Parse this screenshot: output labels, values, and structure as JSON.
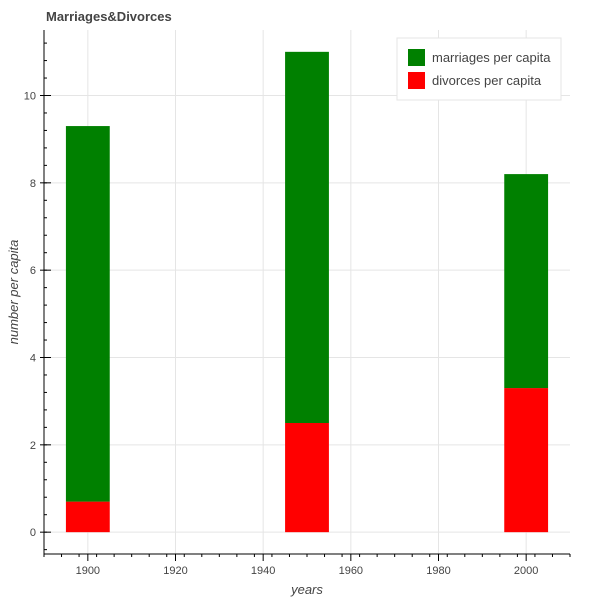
{
  "chart_data": {
    "type": "bar",
    "stacked": true,
    "title": "Marriages&Divorces",
    "xlabel": "years",
    "ylabel": "number per capita",
    "x": [
      1900,
      1950,
      2000
    ],
    "bar_width": 10,
    "series": [
      {
        "name": "divorces per capita",
        "color": "#ff0000",
        "values": [
          0.7,
          2.5,
          3.3
        ]
      },
      {
        "name": "marriages per capita",
        "color": "#008000",
        "values": [
          8.6,
          8.5,
          4.9
        ]
      }
    ],
    "totals": [
      9.3,
      11.0,
      8.2
    ],
    "xlim": [
      1890,
      2010
    ],
    "ylim": [
      -0.5,
      11.5
    ],
    "xticks": [
      1900,
      1920,
      1940,
      1960,
      1980,
      2000
    ],
    "yticks": [
      0,
      2,
      4,
      6,
      8,
      10
    ],
    "grid": true,
    "legend": {
      "placement": "top-right",
      "entries": [
        {
          "label": "marriages per capita",
          "color": "#008000"
        },
        {
          "label": "divorces per capita",
          "color": "#ff0000"
        }
      ]
    }
  }
}
